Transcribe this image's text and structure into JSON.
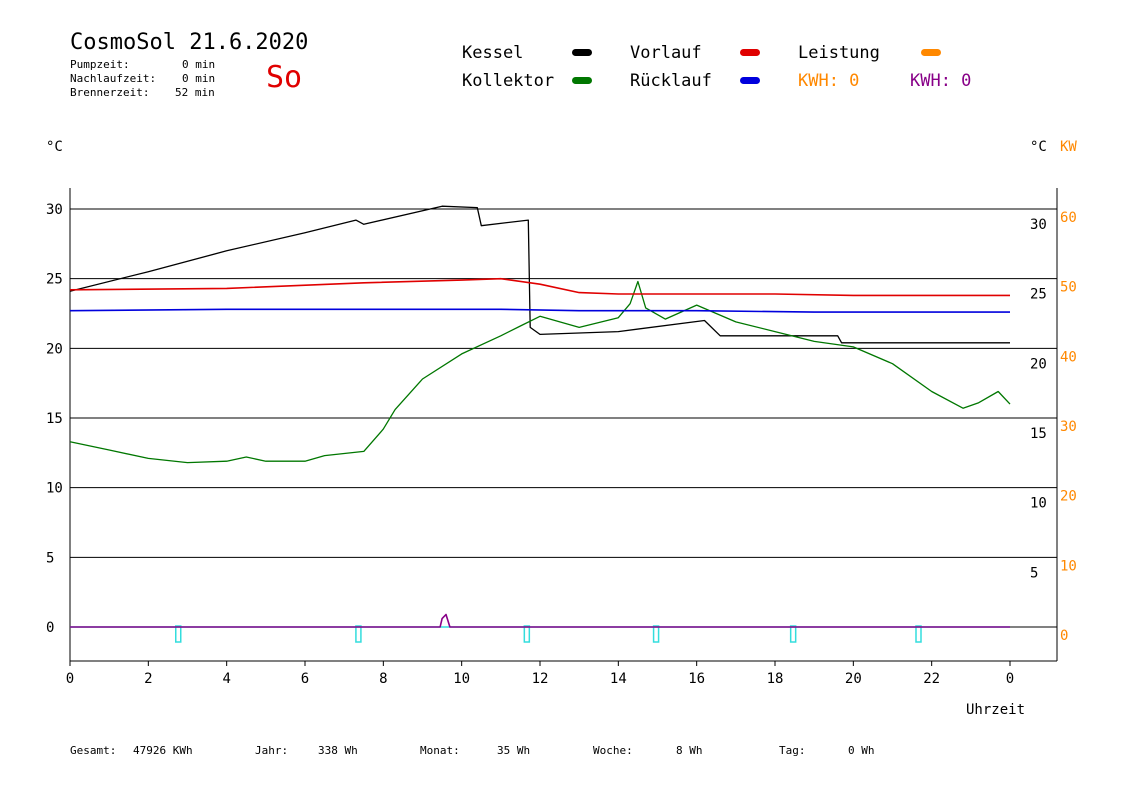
{
  "header": {
    "title": "CosmoSol 21.6.2020",
    "day": "So",
    "stats": [
      {
        "label": "Pumpzeit:",
        "value": "0 min"
      },
      {
        "label": "Nachlaufzeit:",
        "value": "0 min"
      },
      {
        "label": "Brennerzeit:",
        "value": "52 min"
      }
    ]
  },
  "legend": {
    "kessel": "Kessel",
    "kollektor": "Kollektor",
    "vorlauf": "Vorlauf",
    "ruecklauf": "Rücklauf",
    "leistung": "Leistung",
    "kwh1": "KWH: 0",
    "kwh2": "KWH: 0"
  },
  "colors": {
    "kessel": "#000000",
    "kollektor": "#007700",
    "vorlauf": "#e00000",
    "ruecklauf": "#0000dd",
    "leistung": "#ff8800",
    "kwh2": "#880088",
    "pump": "#33dddd"
  },
  "axes": {
    "left_unit": "°C",
    "right_unit": "°C",
    "right_unit2": "KW",
    "x_title": "Uhrzeit"
  },
  "footer": {
    "gesamt_label": "Gesamt:",
    "gesamt_value": "47926 KWh",
    "jahr_label": "Jahr:",
    "jahr_value": "338 Wh",
    "monat_label": "Monat:",
    "monat_value": "35 Wh",
    "woche_label": "Woche:",
    "woche_value": "8 Wh",
    "tag_label": "Tag:",
    "tag_value": "0 Wh"
  },
  "chart_data": {
    "type": "line",
    "xlabel": "Uhrzeit",
    "ylabel": "°C",
    "xlim": [
      0,
      24
    ],
    "ylim": [
      0,
      30
    ],
    "y2lim": [
      0,
      60
    ],
    "x_ticks": [
      "0",
      "2",
      "4",
      "6",
      "8",
      "10",
      "12",
      "14",
      "16",
      "18",
      "20",
      "22",
      "0"
    ],
    "y_ticks_left": [
      "0",
      "5",
      "10",
      "15",
      "20",
      "25",
      "30"
    ],
    "y_ticks_right_c": [
      "5",
      "10",
      "15",
      "20",
      "25",
      "30"
    ],
    "y_ticks_right_kw": [
      "0",
      "10",
      "20",
      "30",
      "40",
      "50",
      "60"
    ],
    "grid": true,
    "series": [
      {
        "name": "Kessel",
        "color": "#000000",
        "x": [
          0,
          2,
          4,
          6,
          7.3,
          7.5,
          9.5,
          10.4,
          10.5,
          11.7,
          11.75,
          12,
          14,
          16.2,
          16.6,
          19.6,
          19.7,
          24
        ],
        "y": [
          24.1,
          25.5,
          27,
          28.3,
          29.2,
          28.9,
          30.2,
          30.1,
          28.8,
          29.2,
          21.5,
          21.0,
          21.2,
          22.0,
          20.9,
          20.9,
          20.4,
          20.4
        ]
      },
      {
        "name": "Kollektor",
        "color": "#007700",
        "x": [
          0,
          1,
          2,
          3,
          4,
          4.5,
          5,
          6,
          6.5,
          7.5,
          8,
          8.3,
          9,
          10,
          11,
          11.5,
          12,
          13,
          14,
          14.3,
          14.5,
          14.7,
          15.2,
          16,
          17,
          18,
          19,
          20,
          21,
          22,
          22.8,
          23.2,
          23.7,
          24
        ],
        "y": [
          13.3,
          12.7,
          12.1,
          11.8,
          11.9,
          12.2,
          11.9,
          11.9,
          12.3,
          12.6,
          14.2,
          15.6,
          17.8,
          19.6,
          20.9,
          21.6,
          22.3,
          21.5,
          22.2,
          23.2,
          24.8,
          22.9,
          22.1,
          23.1,
          21.9,
          21.2,
          20.5,
          20.1,
          18.9,
          16.9,
          15.7,
          16.1,
          16.9,
          16.0
        ]
      },
      {
        "name": "Vorlauf",
        "color": "#e00000",
        "x": [
          0,
          4,
          7.5,
          10,
          11,
          12,
          13,
          14,
          18,
          20,
          24
        ],
        "y": [
          24.2,
          24.3,
          24.7,
          24.9,
          25.0,
          24.6,
          24.0,
          23.9,
          23.9,
          23.8,
          23.8
        ]
      },
      {
        "name": "Rücklauf",
        "color": "#0000dd",
        "x": [
          0,
          4,
          8,
          11,
          13,
          16,
          19,
          24
        ],
        "y": [
          22.7,
          22.8,
          22.8,
          22.8,
          22.7,
          22.7,
          22.6,
          22.6
        ]
      },
      {
        "name": "Leistung",
        "color": "#880088",
        "x": [
          0,
          9.45,
          9.5,
          9.6,
          9.7,
          24
        ],
        "y": [
          0,
          0,
          0.6,
          0.9,
          0,
          0
        ]
      },
      {
        "name": "Pumpe",
        "color": "#33dddd",
        "x": [
          0,
          24
        ],
        "y": [
          0,
          0
        ]
      }
    ],
    "pulses_x": [
      2.7,
      7.3,
      11.6,
      14.9,
      18.4,
      21.6
    ]
  }
}
